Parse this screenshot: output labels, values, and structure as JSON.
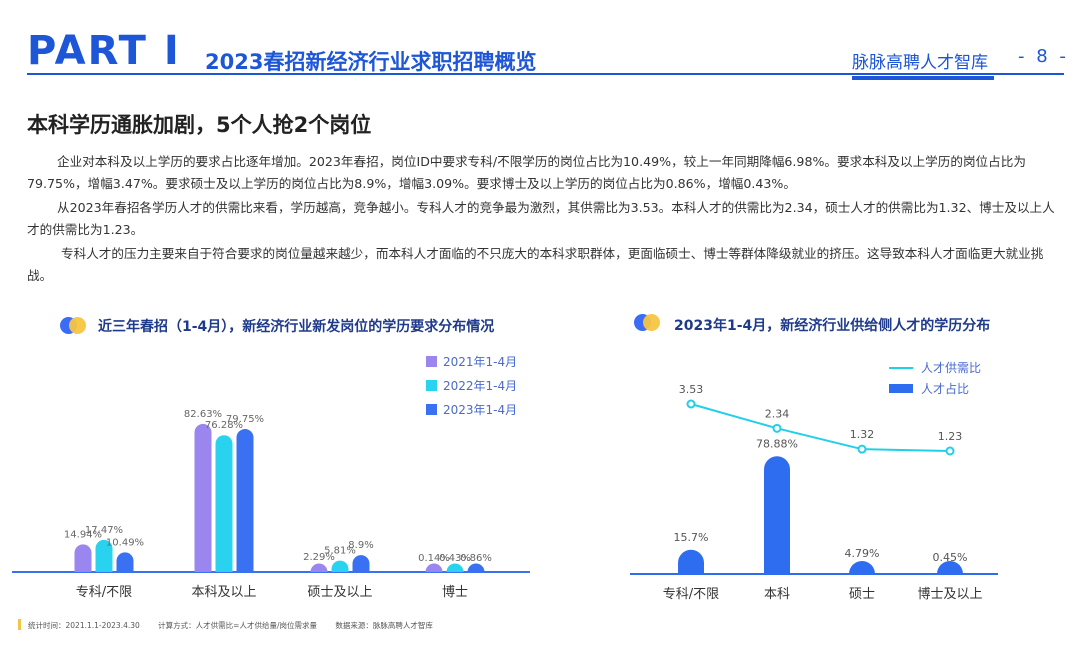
{
  "header": {
    "part": "PART Ⅰ",
    "title": "2023春招新经济行业求职招聘概览",
    "brand": "脉脉高聘人才智库",
    "page": "- 8 -"
  },
  "section_title": "本科学历通胀加剧，5个人抢2个岗位",
  "paragraphs": [
    "企业对本科及以上学历的要求占比逐年增加。2023年春招，岗位ID中要求专科/不限学历的岗位占比为10.49%，较上一年同期降幅6.98%。要求本科及以上学历的岗位占比为79.75%，增幅3.47%。要求硕士及以上学历的岗位占比为8.9%，增幅3.09%。要求博士及以上学历的岗位占比为0.86%，增幅0.43%。",
    "从2023年春招各学历人才的供需比来看，学历越高，竞争越小。专科人才的竞争最为激烈，其供需比为3.53。本科人才的供需比为2.34，硕士人才的供需比为1.32、博士及以上人才的供需比为1.23。",
    "专科人才的压力主要来自于符合要求的岗位量越来越少，而本科人才面临的不只庞大的本科求职群体，更面临硕士、博士等群体降级就业的挤压。这导致本科人才面临更大就业挑战。"
  ],
  "footer": {
    "stat_time": "统计时间：2021.1.1-2023.4.30",
    "method": "计算方式：人才供需比=人才供给量/岗位需求量",
    "source": "数据来源：脉脉高聘人才智库"
  },
  "chart_data": [
    {
      "type": "bar",
      "title": "近三年春招（1-4月），新经济行业新发岗位的学历要求分布情况",
      "categories": [
        "专科/不限",
        "本科及以上",
        "硕士及以上",
        "博士"
      ],
      "series": [
        {
          "name": "2021年1-4月",
          "values": [
            14.94,
            82.63,
            2.29,
            0.14
          ],
          "labels": [
            "14.94%",
            "82.63%",
            "2.29%",
            "0.14%"
          ],
          "color": "#9b86ef"
        },
        {
          "name": "2022年1-4月",
          "values": [
            17.47,
            76.28,
            5.81,
            0.43
          ],
          "labels": [
            "17.47%",
            "76.28%",
            "5.81%",
            "0.43%"
          ],
          "color": "#29d3f0"
        },
        {
          "name": "2023年1-4月",
          "values": [
            10.49,
            79.75,
            8.9,
            0.86
          ],
          "labels": [
            "10.49%",
            "79.75%",
            "8.9%",
            "0.86%"
          ],
          "color": "#3a70f2"
        }
      ],
      "ylim": [
        0,
        100
      ],
      "legend": "top-right",
      "grid": false
    },
    {
      "type": "bar+line",
      "title": "2023年1-4月，新经济行业供给侧人才的学历分布",
      "categories": [
        "专科/不限",
        "本科",
        "硕士",
        "博士及以上"
      ],
      "series": [
        {
          "name": "人才占比",
          "kind": "bar",
          "values": [
            15.7,
            78.88,
            4.79,
            0.45
          ],
          "labels": [
            "15.7%",
            "78.88%",
            "4.79%",
            "0.45%"
          ],
          "color": "#2f6df0"
        },
        {
          "name": "人才供需比",
          "kind": "line",
          "values": [
            3.53,
            2.34,
            1.32,
            1.23
          ],
          "labels": [
            "3.53",
            "2.34",
            "1.32",
            "1.23"
          ],
          "color": "#22cfe8"
        }
      ],
      "ylim": [
        0,
        100
      ],
      "legend": "top-right",
      "grid": false
    }
  ]
}
